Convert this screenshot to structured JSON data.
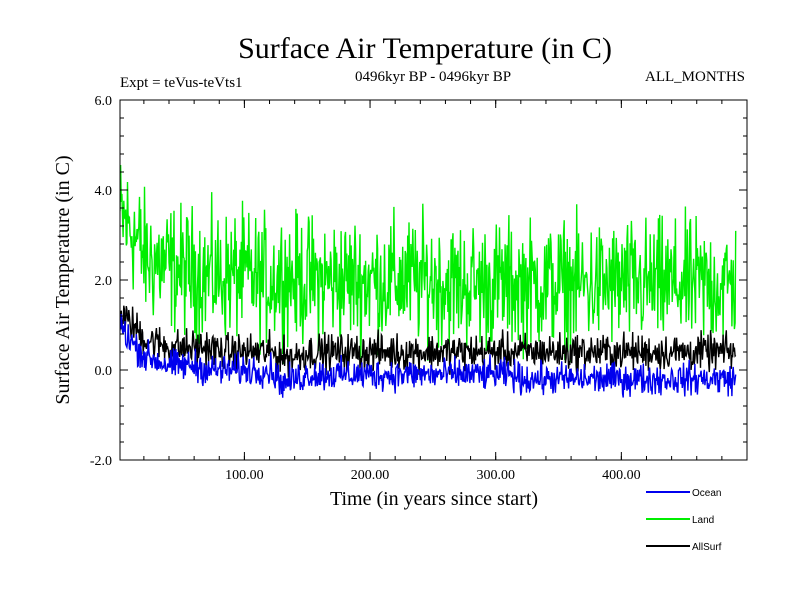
{
  "chart_data": {
    "type": "line",
    "title": "Surface Air Temperature (in C)",
    "subtitle_left": "Expt = teVus-teVts1",
    "subtitle_center": "0496kyr BP - 0496kyr BP",
    "subtitle_right": "ALL_MONTHS",
    "xlabel": "Time (in years since start)",
    "ylabel": "Surface Air Temperature (in C)",
    "xlim": [
      1,
      500
    ],
    "ylim": [
      -2.0,
      6.0
    ],
    "x_ticks": [
      100,
      200,
      300,
      400
    ],
    "x_tick_labels": [
      "100.00",
      "200.00",
      "300.00",
      "400.00"
    ],
    "y_ticks": [
      -2.0,
      0.0,
      2.0,
      4.0,
      6.0
    ],
    "y_tick_labels": [
      "-2.0",
      "0.0",
      "2.0",
      "4.0",
      "6.0"
    ],
    "legend_position": "bottom-right, below plot",
    "series": [
      {
        "name": "Land",
        "color": "#00ee00",
        "x_start": 1,
        "x_step": 10,
        "values": [
          3.4,
          3.1,
          2.5,
          2.4,
          2.3,
          2.2,
          2.2,
          2.1,
          2.1,
          2.1,
          2.1,
          2.0,
          2.0,
          2.1,
          2.0,
          2.0,
          2.0,
          2.0,
          2.0,
          2.0,
          2.0,
          2.0,
          2.0,
          2.0,
          2.0,
          2.0,
          1.9,
          1.9,
          1.9,
          1.9,
          1.9,
          1.9,
          1.9,
          1.9,
          1.9,
          1.9,
          1.9,
          1.9,
          1.9,
          1.9,
          1.9,
          1.9,
          1.9,
          1.9,
          1.9,
          1.9,
          1.9,
          1.9,
          1.9,
          1.9
        ],
        "spread": 1.2
      },
      {
        "name": "AllSurf",
        "color": "#000000",
        "x_start": 1,
        "x_step": 10,
        "values": [
          1.2,
          1.0,
          0.7,
          0.6,
          0.5,
          0.5,
          0.5,
          0.5,
          0.4,
          0.4,
          0.4,
          0.4,
          0.4,
          0.3,
          0.3,
          0.4,
          0.4,
          0.4,
          0.4,
          0.4,
          0.4,
          0.4,
          0.4,
          0.4,
          0.4,
          0.4,
          0.4,
          0.4,
          0.4,
          0.4,
          0.4,
          0.4,
          0.4,
          0.4,
          0.4,
          0.4,
          0.4,
          0.4,
          0.4,
          0.4,
          0.4,
          0.4,
          0.4,
          0.4,
          0.4,
          0.4,
          0.4,
          0.4,
          0.4,
          0.4
        ],
        "spread": 0.35
      },
      {
        "name": "Ocean",
        "color": "#0000ee",
        "x_start": 1,
        "x_step": 10,
        "values": [
          1.0,
          0.6,
          0.3,
          0.2,
          0.1,
          0.1,
          0.1,
          0.0,
          0.0,
          0.0,
          0.0,
          0.0,
          0.0,
          -0.3,
          -0.2,
          -0.1,
          -0.1,
          -0.1,
          -0.1,
          -0.1,
          -0.1,
          -0.1,
          -0.1,
          -0.1,
          -0.1,
          -0.1,
          -0.1,
          -0.1,
          -0.1,
          -0.1,
          -0.1,
          -0.1,
          -0.2,
          -0.2,
          -0.2,
          -0.2,
          -0.2,
          -0.2,
          -0.2,
          -0.2,
          -0.2,
          -0.2,
          -0.2,
          -0.2,
          -0.2,
          -0.2,
          -0.2,
          -0.2,
          -0.2,
          -0.2
        ],
        "spread": 0.3
      }
    ]
  }
}
